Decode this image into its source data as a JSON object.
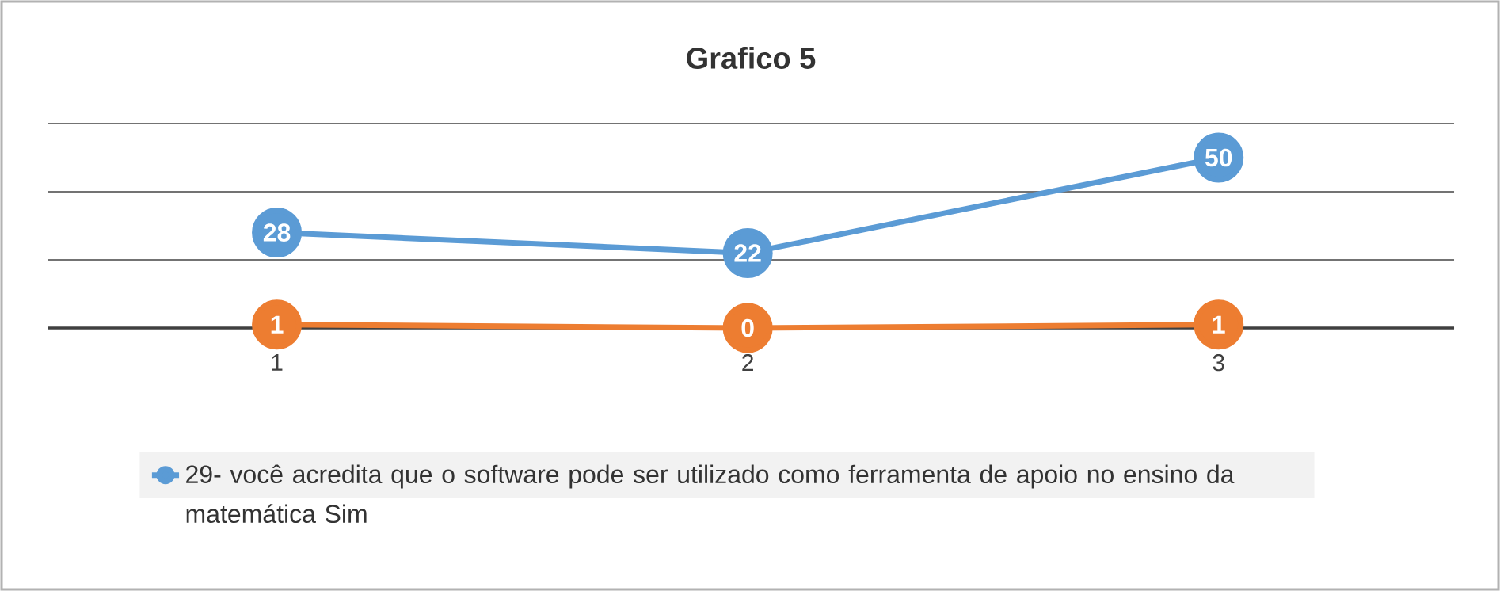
{
  "chart_data": {
    "type": "line",
    "title": "Grafico 5",
    "categories": [
      "1",
      "2",
      "3"
    ],
    "series": [
      {
        "name": "29- você acredita que o software pode ser utilizado como ferramenta de apoio no ensino da matemática  Sim",
        "color": "#5b9bd5",
        "values": [
          28,
          22,
          50
        ]
      },
      {
        "color": "#ed7d31",
        "values": [
          1,
          0,
          1
        ]
      }
    ],
    "ylim": [
      0,
      60
    ],
    "yticks": [
      {
        "value": 0,
        "label": null
      },
      {
        "value": 20,
        "label": null
      },
      {
        "value": 40,
        "label": null
      },
      {
        "value": 60,
        "label": null
      }
    ],
    "grid": "y",
    "legend": "bottom",
    "marker": "circle",
    "data_labels": true,
    "tick_labels": "x"
  }
}
